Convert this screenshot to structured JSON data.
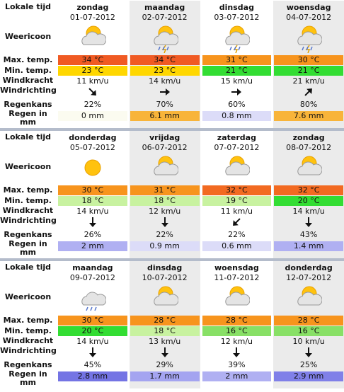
{
  "blocks": [
    {
      "labels": [
        "Lokale tijd",
        "Weericoon",
        "Max. temp.",
        "Min. temp.",
        "Windkracht",
        "Windrichting",
        "Regenkans",
        "Regen in mm"
      ],
      "days": [
        {
          "day": "zondag",
          "date": "01-07-2012",
          "max": {
            "text": "34 °C",
            "color": "#f05a23"
          },
          "min": {
            "text": "23 °C",
            "color": "#ffd700"
          },
          "wind": "11 km/u",
          "wind_direction": 45,
          "rain_chance": "22%",
          "rain": {
            "text": "0 mm",
            "color": "#fbfbf0"
          }
        },
        {
          "day": "maandag",
          "date": "02-07-2012",
          "max": {
            "text": "34 °C",
            "color": "#f05a23"
          },
          "min": {
            "text": "23 °C",
            "color": "#ffd700"
          },
          "wind": "14 km/u",
          "wind_direction": 0,
          "rain_chance": "70%",
          "rain": {
            "text": "6.1 mm",
            "color": "#f8b43a"
          }
        },
        {
          "day": "dinsdag",
          "date": "03-07-2012",
          "max": {
            "text": "31 °C",
            "color": "#f7941d"
          },
          "min": {
            "text": "21 °C",
            "color": "#33dd33"
          },
          "wind": "15 km/u",
          "wind_direction": 0,
          "rain_chance": "60%",
          "rain": {
            "text": "0.8 mm",
            "color": "#dcdcf8"
          }
        },
        {
          "day": "woensdag",
          "date": "04-07-2012",
          "max": {
            "text": "30 °C",
            "color": "#f7941d"
          },
          "min": {
            "text": "21 °C",
            "color": "#33dd33"
          },
          "wind": "21 km/u",
          "wind_direction": -45,
          "rain_chance": "80%",
          "rain": {
            "text": "7.6 mm",
            "color": "#f8b43a"
          }
        }
      ]
    },
    {
      "labels": [
        "Lokale tijd",
        "Weericoon",
        "Max. temp.",
        "Min. temp.",
        "Windkracht",
        "Windrichting",
        "Regenkans",
        "Regen in mm"
      ],
      "days": [
        {
          "day": "donderdag",
          "date": "05-07-2012",
          "max": {
            "text": "30 °C",
            "color": "#f7941d"
          },
          "min": {
            "text": "18 °C",
            "color": "#c8f2a0"
          },
          "wind": "14 km/u",
          "wind_direction": 90,
          "rain_chance": "26%",
          "rain": {
            "text": "2 mm",
            "color": "#b0b0f2"
          }
        },
        {
          "day": "vrijdag",
          "date": "06-07-2012",
          "max": {
            "text": "31 °C",
            "color": "#f7941d"
          },
          "min": {
            "text": "18 °C",
            "color": "#c8f2a0"
          },
          "wind": "12 km/u",
          "wind_direction": 90,
          "rain_chance": "22%",
          "rain": {
            "text": "0.9 mm",
            "color": "#dcdcf8"
          }
        },
        {
          "day": "zaterdag",
          "date": "07-07-2012",
          "max": {
            "text": "32 °C",
            "color": "#f26a21"
          },
          "min": {
            "text": "19 °C",
            "color": "#c8f2a0"
          },
          "wind": "11 km/u",
          "wind_direction": 135,
          "rain_chance": "22%",
          "rain": {
            "text": "0.6 mm",
            "color": "#dcdcf8"
          }
        },
        {
          "day": "zondag",
          "date": "08-07-2012",
          "max": {
            "text": "32 °C",
            "color": "#f26a21"
          },
          "min": {
            "text": "20 °C",
            "color": "#33dd33"
          },
          "wind": "14 km/u",
          "wind_direction": 90,
          "rain_chance": "43%",
          "rain": {
            "text": "1.4 mm",
            "color": "#b0b0f2"
          }
        }
      ]
    },
    {
      "labels": [
        "Lokale tijd",
        "Weericoon",
        "Max. temp.",
        "Min. temp.",
        "Windkracht",
        "Windrichting",
        "Regenkans",
        "Regen in mm"
      ],
      "days": [
        {
          "day": "maandag",
          "date": "09-07-2012",
          "max": {
            "text": "30 °C",
            "color": "#f7941d"
          },
          "min": {
            "text": "20 °C",
            "color": "#33dd33"
          },
          "wind": "14 km/u",
          "wind_direction": 90,
          "rain_chance": "45%",
          "rain": {
            "text": "2.8 mm",
            "color": "#7474e4"
          }
        },
        {
          "day": "dinsdag",
          "date": "10-07-2012",
          "max": {
            "text": "28 °C",
            "color": "#f7941d"
          },
          "min": {
            "text": "18 °C",
            "color": "#c8f2a0"
          },
          "wind": "13 km/u",
          "wind_direction": 90,
          "rain_chance": "29%",
          "rain": {
            "text": "1.7 mm",
            "color": "#a4a4f0"
          }
        },
        {
          "day": "woensdag",
          "date": "11-07-2012",
          "max": {
            "text": "28 °C",
            "color": "#f7941d"
          },
          "min": {
            "text": "16 °C",
            "color": "#88e066"
          },
          "wind": "12 km/u",
          "wind_direction": 90,
          "rain_chance": "39%",
          "rain": {
            "text": "2 mm",
            "color": "#b0b0f2"
          }
        },
        {
          "day": "donderdag",
          "date": "12-07-2012",
          "max": {
            "text": "28 °C",
            "color": "#f7941d"
          },
          "min": {
            "text": "16 °C",
            "color": "#88e066"
          },
          "wind": "10 km/u",
          "wind_direction": 90,
          "rain_chance": "25%",
          "rain": {
            "text": "2.9 mm",
            "color": "#8080e8"
          }
        }
      ]
    }
  ]
}
